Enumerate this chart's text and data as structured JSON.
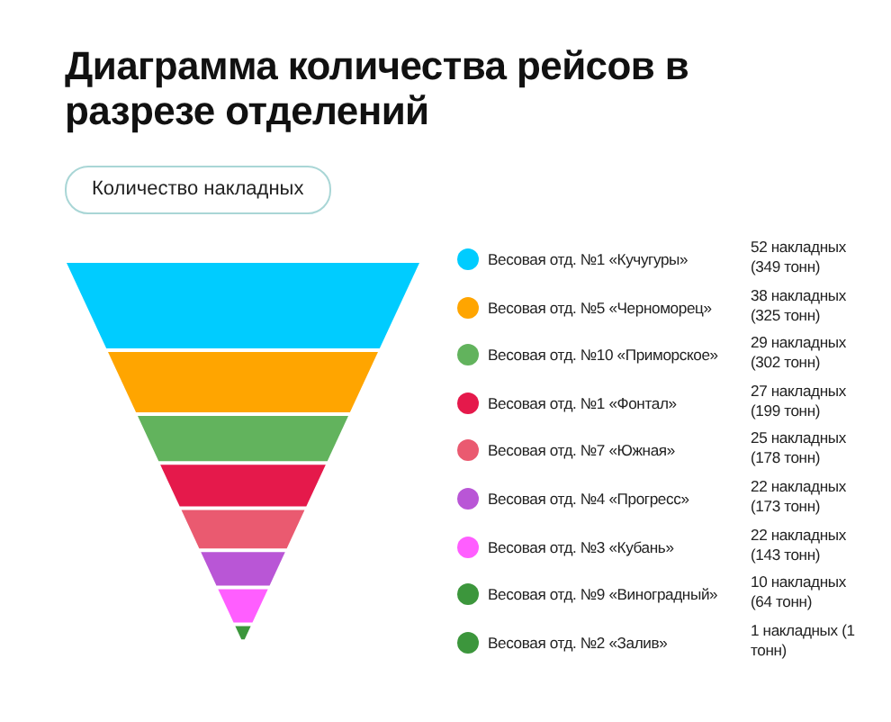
{
  "chart_data": {
    "type": "other",
    "title": "Диаграмма количества рейсов в разрезе отделений",
    "subtitle": "Количество накладных",
    "categories": [
      "Весовая отд. №1 «Кучугуры»",
      "Весовая отд. №5 «Черноморец»",
      "Весовая отд. №10 «Приморское»",
      "Весовая отд. №1 «Фонтал»",
      "Весовая отд. №7 «Южная»",
      "Весовая отд. №4 «Прогресс»",
      "Весовая отд. №3 «Кубань»",
      "Весовая отд. №9 «Виноградный»",
      "Весовая отд. №2 «Залив»"
    ],
    "values": [
      52,
      38,
      29,
      27,
      25,
      22,
      22,
      10,
      1
    ],
    "value_labels": [
      "52 накладных (349 тонн)",
      "38 накладных (325 тонн)",
      "29 накладных (302 тонн)",
      "27 накладных (199 тонн)",
      "25 накладных (178 тонн)",
      "22 накладных (173 тонн)",
      "22 накладных (143 тонн)",
      "10 накладных (64 тонн)",
      "1 накладных (1 тонн)"
    ],
    "colors": [
      "#00ccff",
      "#ffa500",
      "#62b35d",
      "#e5194b",
      "#ea5a70",
      "#b956d6",
      "#ff5eff",
      "#3c963c",
      "#3c963c"
    ]
  }
}
